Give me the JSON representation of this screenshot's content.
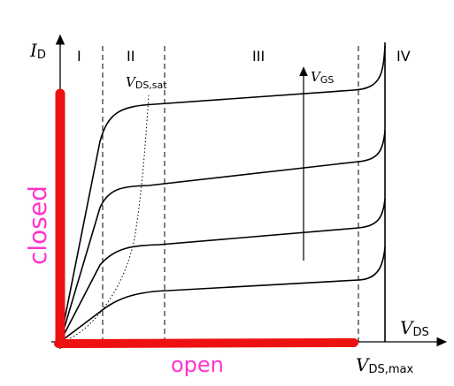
{
  "axes": {
    "y_label_main": "I",
    "y_label_sub": "D",
    "x_label_main": "V",
    "x_label_sub": "DS",
    "x_max_label_main": "V",
    "x_max_label_sub": "DS,max"
  },
  "regions": [
    "I",
    "II",
    "III",
    "IV"
  ],
  "annotations": {
    "vds_sat_main": "V",
    "vds_sat_sub": "DS,sat",
    "vgs_main": "V",
    "vgs_sub": "GS"
  },
  "handwritten": {
    "closed": "closed",
    "open": "open",
    "color": "#ff33cc",
    "marker_color": "#ee1111"
  }
}
